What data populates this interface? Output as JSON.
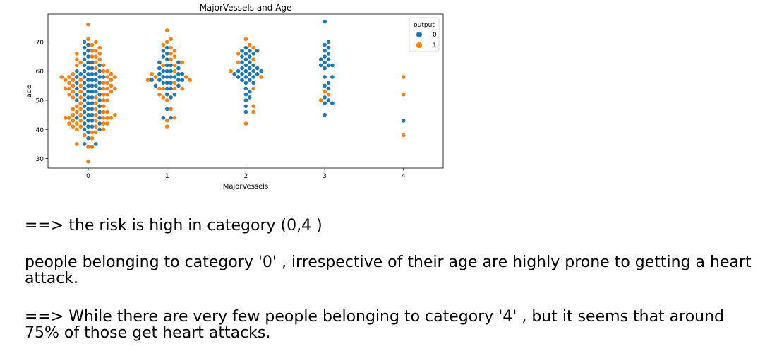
{
  "chart_data": {
    "type": "scatter",
    "subtype": "swarm",
    "title": "MajorVessels and Age",
    "xlabel": "MajorVessels",
    "ylabel": "age",
    "categories": [
      "0",
      "1",
      "2",
      "3",
      "4"
    ],
    "ylim": [
      28,
      79
    ],
    "yticks": [
      30,
      40,
      50,
      60,
      70
    ],
    "grid": false,
    "legend": {
      "title": "output",
      "placement": "top-right"
    },
    "series": [
      {
        "name": "0",
        "color": "#1f77b4",
        "points": [
          {
            "x": "0",
            "ages": [
              35,
              35,
              37,
              39,
              40,
              40,
              41,
              41,
              42,
              42,
              43,
              43,
              44,
              44,
              44,
              45,
              45,
              46,
              46,
              47,
              47,
              48,
              48,
              49,
              49,
              50,
              50,
              50,
              51,
              51,
              52,
              52,
              52,
              53,
              53,
              53,
              54,
              54,
              54,
              55,
              55,
              55,
              56,
              56,
              56,
              57,
              57,
              57,
              58,
              58,
              58,
              58,
              59,
              59,
              59,
              59,
              60,
              60,
              60,
              61,
              61,
              62,
              62,
              63,
              63,
              64,
              65,
              66,
              67,
              68,
              69,
              70
            ]
          },
          {
            "x": "1",
            "ages": [
              44,
              44,
              47,
              51,
              52,
              52,
              54,
              54,
              55,
              55,
              56,
              56,
              56,
              57,
              57,
              57,
              57,
              58,
              58,
              58,
              58,
              59,
              59,
              59,
              60,
              60,
              60,
              61,
              61,
              62,
              62,
              63,
              63,
              64,
              65,
              66,
              67,
              68
            ]
          },
          {
            "x": "2",
            "ages": [
              46,
              48,
              50,
              51,
              52,
              53,
              54,
              56,
              56,
              57,
              57,
              58,
              58,
              58,
              59,
              59,
              59,
              59,
              60,
              60,
              60,
              60,
              61,
              61,
              61,
              62,
              62,
              63,
              63,
              64,
              65,
              65,
              66,
              66,
              67,
              67,
              67,
              68
            ]
          },
          {
            "x": "3",
            "ages": [
              45,
              49,
              49,
              50,
              51,
              54,
              55,
              56,
              58,
              58,
              61,
              62,
              62,
              62,
              63,
              64,
              64,
              65,
              66,
              67,
              68,
              69,
              70,
              77
            ]
          },
          {
            "x": "4",
            "ages": [
              43
            ]
          }
        ]
      },
      {
        "name": "1",
        "color": "#ff7f0e",
        "points": [
          {
            "x": "0",
            "ages": [
              29,
              34,
              34,
              35,
              37,
              38,
              39,
              39,
              40,
              40,
              41,
              41,
              41,
              42,
              42,
              42,
              42,
              43,
              43,
              43,
              44,
              44,
              44,
              44,
              44,
              45,
              45,
              45,
              45,
              46,
              46,
              46,
              47,
              47,
              47,
              48,
              48,
              49,
              49,
              50,
              50,
              51,
              51,
              51,
              52,
              52,
              52,
              53,
              53,
              53,
              54,
              54,
              54,
              54,
              54,
              55,
              55,
              55,
              56,
              56,
              56,
              57,
              57,
              57,
              57,
              58,
              58,
              58,
              58,
              59,
              59,
              60,
              60,
              61,
              62,
              62,
              63,
              63,
              64,
              64,
              65,
              65,
              66,
              66,
              67,
              67,
              68,
              69,
              70,
              71,
              76
            ]
          },
          {
            "x": "1",
            "ages": [
              41,
              43,
              44,
              47,
              50,
              51,
              52,
              54,
              54,
              54,
              54,
              56,
              57,
              57,
              58,
              58,
              59,
              60,
              62,
              62,
              63,
              64,
              65,
              66,
              67,
              68,
              69,
              70,
              71,
              74
            ]
          },
          {
            "x": "2",
            "ages": [
              42,
              46,
              48,
              54,
              58,
              60,
              63,
              64,
              66,
              68,
              69,
              71
            ]
          },
          {
            "x": "3",
            "ages": [
              50,
              52,
              53
            ]
          },
          {
            "x": "4",
            "ages": [
              38,
              52,
              58
            ]
          }
        ]
      }
    ]
  },
  "notes": [
    "==> the risk is high in category (0,4 )",
    "people belonging to category '0' , irrespective of their age are highly prone to getting a heart attack.",
    "==> While there are very few people belonging to category '4' , but it seems that around 75% of those get heart attacks."
  ]
}
